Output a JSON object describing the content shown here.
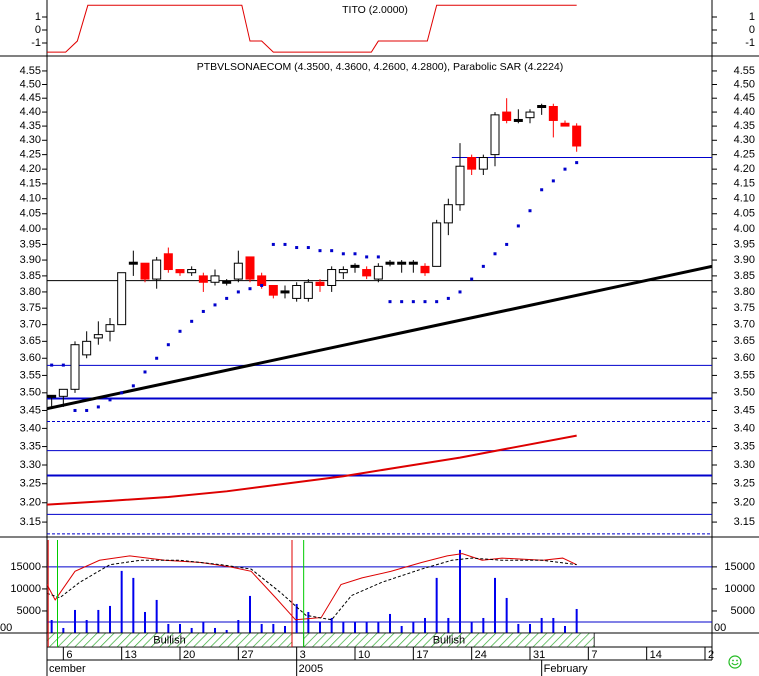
{
  "chart_data": [
    {
      "type": "line",
      "title": "TITO (2.0000)",
      "color": "#e00000",
      "x": [
        -0.4,
        1.2,
        2.2,
        3.1,
        16.3,
        17,
        18,
        19,
        27.4,
        28,
        32.2,
        33,
        45
      ],
      "values": [
        -1.7,
        -1.7,
        -0.85,
        1.9,
        1.9,
        -0.85,
        -0.85,
        -1.7,
        -1.7,
        -0.85,
        -0.85,
        1.9,
        1.9
      ],
      "xlim": [
        -0.4,
        56.6
      ],
      "ylim": [
        -2,
        2
      ],
      "yticks": [
        1,
        0,
        -1
      ]
    },
    {
      "type": "candlestick",
      "title": "PTBVLSONAECOM (4.3500, 4.3600, 4.2600, 4.2800), Parabolic SAR (4.2224)",
      "log_scale": true,
      "x": [
        0,
        1,
        2,
        3,
        4,
        5,
        6,
        7,
        8,
        9,
        10,
        11,
        12,
        13,
        14,
        15,
        16,
        17,
        18,
        19,
        20,
        21,
        22,
        23,
        24,
        25,
        26,
        27,
        28,
        29,
        30,
        31,
        32,
        33,
        34,
        35,
        36,
        37,
        38,
        39,
        40,
        41,
        42,
        43,
        44,
        45
      ],
      "open": [
        3.49,
        3.49,
        3.51,
        3.61,
        3.66,
        3.68,
        3.7,
        3.89,
        3.89,
        3.84,
        3.92,
        3.87,
        3.86,
        3.85,
        3.83,
        3.83,
        3.84,
        3.91,
        3.85,
        3.82,
        3.8,
        3.78,
        3.78,
        3.83,
        3.82,
        3.86,
        3.88,
        3.87,
        3.84,
        3.89,
        3.89,
        3.89,
        3.88,
        3.88,
        4.02,
        4.08,
        4.24,
        4.2,
        4.25,
        4.4,
        4.37,
        4.38,
        4.42,
        4.42,
        4.36,
        4.35
      ],
      "high": [
        3.49,
        3.51,
        3.65,
        3.68,
        3.71,
        3.72,
        3.86,
        3.93,
        3.89,
        3.91,
        3.94,
        3.87,
        3.88,
        3.86,
        3.87,
        3.84,
        3.93,
        3.91,
        3.86,
        3.82,
        3.82,
        3.83,
        3.84,
        3.84,
        3.88,
        3.88,
        3.89,
        3.88,
        3.89,
        3.9,
        3.9,
        3.9,
        3.89,
        4.03,
        4.1,
        4.29,
        4.25,
        4.25,
        4.4,
        4.45,
        4.41,
        4.41,
        4.43,
        4.43,
        4.37,
        4.36
      ],
      "low": [
        3.46,
        3.46,
        3.5,
        3.6,
        3.64,
        3.65,
        3.7,
        3.85,
        3.83,
        3.81,
        3.86,
        3.85,
        3.85,
        3.8,
        3.82,
        3.82,
        3.83,
        3.83,
        3.81,
        3.78,
        3.78,
        3.77,
        3.77,
        3.8,
        3.8,
        3.84,
        3.86,
        3.84,
        3.83,
        3.88,
        3.86,
        3.86,
        3.85,
        3.88,
        3.98,
        4.06,
        4.18,
        4.18,
        4.21,
        4.36,
        4.36,
        4.36,
        4.39,
        4.31,
        4.35,
        4.26
      ],
      "close": [
        3.49,
        3.51,
        3.64,
        3.65,
        3.67,
        3.7,
        3.86,
        3.89,
        3.84,
        3.9,
        3.87,
        3.86,
        3.87,
        3.83,
        3.85,
        3.83,
        3.89,
        3.84,
        3.82,
        3.79,
        3.8,
        3.82,
        3.83,
        3.82,
        3.87,
        3.87,
        3.88,
        3.85,
        3.88,
        3.89,
        3.89,
        3.89,
        3.86,
        4.02,
        4.08,
        4.21,
        4.2,
        4.24,
        4.39,
        4.37,
        4.37,
        4.4,
        4.42,
        4.37,
        4.35,
        4.28
      ],
      "up_color": "#ffffff",
      "down_color": "#ff0000",
      "sar": {
        "color": "#0000cc",
        "values": [
          3.58,
          3.58,
          3.45,
          3.45,
          3.46,
          3.48,
          3.5,
          3.52,
          3.56,
          3.6,
          3.64,
          3.68,
          3.71,
          3.74,
          3.76,
          3.78,
          3.8,
          3.81,
          3.82,
          3.95,
          3.95,
          3.94,
          3.94,
          3.93,
          3.93,
          3.92,
          3.92,
          3.91,
          3.91,
          3.77,
          3.77,
          3.77,
          3.77,
          3.77,
          3.78,
          3.8,
          3.84,
          3.88,
          3.92,
          3.95,
          4.01,
          4.06,
          4.13,
          4.16,
          4.2,
          4.2224
        ]
      },
      "moving_average": {
        "color": "#dd0000",
        "x": [
          -0.4,
          5,
          10,
          15,
          20,
          25,
          30,
          35,
          40,
          45
        ],
        "values": [
          3.195,
          3.205,
          3.215,
          3.23,
          3.25,
          3.27,
          3.295,
          3.32,
          3.35,
          3.38
        ]
      },
      "trendline": {
        "color": "#000000",
        "x": [
          -0.4,
          56.6
        ],
        "values": [
          3.455,
          3.88
        ]
      },
      "hlines": [
        {
          "value": 3.835,
          "color": "#000000"
        },
        {
          "value": 4.24,
          "color": "#0000cc",
          "from": 34.3
        },
        {
          "value": 3.579,
          "color": "#0000cc"
        },
        {
          "value": 3.484,
          "color": "#0000cc",
          "width": 2
        },
        {
          "value": 3.419,
          "color": "#0000cc",
          "dash": true
        },
        {
          "value": 3.339,
          "color": "#0000cc"
        },
        {
          "value": 3.272,
          "color": "#0000cc",
          "width": 2
        },
        {
          "value": 3.17,
          "color": "#0000cc"
        },
        {
          "value": 3.12,
          "color": "#0000cc",
          "dash": true
        }
      ],
      "xlim": [
        -0.4,
        56.6
      ],
      "ylim": [
        3.117,
        4.602
      ],
      "yticks": [
        4.55,
        {
          "value": 4.5,
          "label": "4.50"
        },
        4.45,
        {
          "value": 4.4,
          "label": "4.40"
        },
        4.35,
        {
          "value": 4.3,
          "label": "4.30"
        },
        4.25,
        {
          "value": 4.2,
          "label": "4.20"
        },
        4.15,
        {
          "value": 4.1,
          "label": "4.10"
        },
        4.05,
        {
          "value": 4,
          "label": "4.00"
        },
        3.95,
        {
          "value": 3.9,
          "label": "3.90"
        },
        3.85,
        {
          "value": 3.8,
          "label": "3.80"
        },
        3.75,
        {
          "value": 3.7,
          "label": "3.70"
        },
        3.65,
        {
          "value": 3.6,
          "label": "3.60"
        },
        3.55,
        {
          "value": 3.5,
          "label": "3.50"
        },
        3.45,
        {
          "value": 3.4,
          "label": "3.40"
        },
        3.35,
        {
          "value": 3.3,
          "label": "3.30"
        },
        3.25,
        {
          "value": 3.2,
          "label": "3.20"
        },
        3.15
      ]
    },
    {
      "type": "bar",
      "color": "#0000ee",
      "x": [
        0,
        1,
        2,
        3,
        4,
        5,
        6,
        7,
        8,
        9,
        10,
        11,
        12,
        13,
        14,
        15,
        16,
        17,
        18,
        19,
        20,
        21,
        22,
        23,
        24,
        25,
        26,
        27,
        28,
        29,
        30,
        31,
        32,
        33,
        34,
        35,
        36,
        37,
        38,
        39,
        40,
        41,
        42,
        43,
        44,
        45
      ],
      "values": [
        2950,
        1140,
        5230,
        2950,
        5230,
        6140,
        14090,
        12500,
        4770,
        7500,
        2050,
        2050,
        1140,
        2500,
        1140,
        680,
        2950,
        8410,
        2050,
        2050,
        1590,
        6590,
        4770,
        2500,
        3410,
        2500,
        2500,
        2500,
        2500,
        4320,
        1590,
        2500,
        3410,
        12500,
        3410,
        18860,
        2500,
        3410,
        12500,
        7950,
        2050,
        2050,
        3410,
        3410,
        1590,
        5450
      ],
      "series": [
        {
          "color": "#dd0000",
          "x": [
            -0.4,
            0.3,
            2,
            4.1,
            6.7,
            9.7,
            12.8,
            15.3,
            17.1,
            19.2,
            20.9,
            23.1,
            24.8,
            26.6,
            29.1,
            31.7,
            33.9,
            35.2,
            36.9,
            38.6,
            42.1,
            43.8,
            45
          ],
          "values": [
            11000,
            7500,
            14000,
            16500,
            17500,
            16500,
            16000,
            15000,
            14000,
            8000,
            3000,
            3500,
            11000,
            12500,
            14000,
            16000,
            17500,
            18000,
            16500,
            17000,
            16500,
            17000,
            15500
          ]
        },
        {
          "color": "#000000",
          "dash": true,
          "x": [
            -0.4,
            0.7,
            2.4,
            5,
            7.6,
            11,
            14.5,
            17.1,
            19.7,
            21.8,
            24,
            25.7,
            28.3,
            31.7,
            34.3,
            36,
            38.6,
            42.1,
            45
          ],
          "values": [
            9000,
            8000,
            11500,
            15500,
            16500,
            16500,
            15500,
            14500,
            9000,
            4000,
            3000,
            8500,
            11500,
            14500,
            16500,
            17000,
            16500,
            16500,
            15500
          ]
        }
      ],
      "hlines": [
        15000,
        2500
      ],
      "hline_color": "#0000cc",
      "xlim": [
        -0.4,
        56.6
      ],
      "ylim": [
        0,
        21100
      ],
      "yticks": [
        15000,
        10000,
        5000
      ],
      "partial_tick_label": "00",
      "markers": [
        {
          "x": -0.3,
          "color": "#e00000"
        },
        {
          "x": 0.5,
          "color": "#00cc00"
        },
        {
          "x": 20.6,
          "color": "#e00000"
        },
        {
          "x": 21.6,
          "color": "#00cc00"
        }
      ],
      "bands": [
        {
          "from": -0.4,
          "to": 20.6,
          "label": "Bullish"
        },
        {
          "from": 21.6,
          "to": 46.5,
          "label": "Bullish"
        }
      ],
      "xticks": [
        {
          "value": 1,
          "label": "6"
        },
        {
          "value": 6,
          "label": "13"
        },
        {
          "value": 11,
          "label": "20"
        },
        {
          "value": 16,
          "label": "27"
        },
        {
          "value": 21,
          "label": "3"
        },
        {
          "value": 26,
          "label": "10"
        },
        {
          "value": 31,
          "label": "17"
        },
        {
          "value": 36,
          "label": "24"
        },
        {
          "value": 41,
          "label": "31"
        },
        {
          "value": 46,
          "label": "7"
        },
        {
          "value": 51,
          "label": "14"
        },
        {
          "value": 56,
          "label": "2"
        }
      ],
      "month_ticks": [
        {
          "value": -0.4,
          "label": "cember"
        },
        {
          "value": 21,
          "label": "2005"
        },
        {
          "value": 42,
          "label": "February"
        }
      ]
    }
  ]
}
